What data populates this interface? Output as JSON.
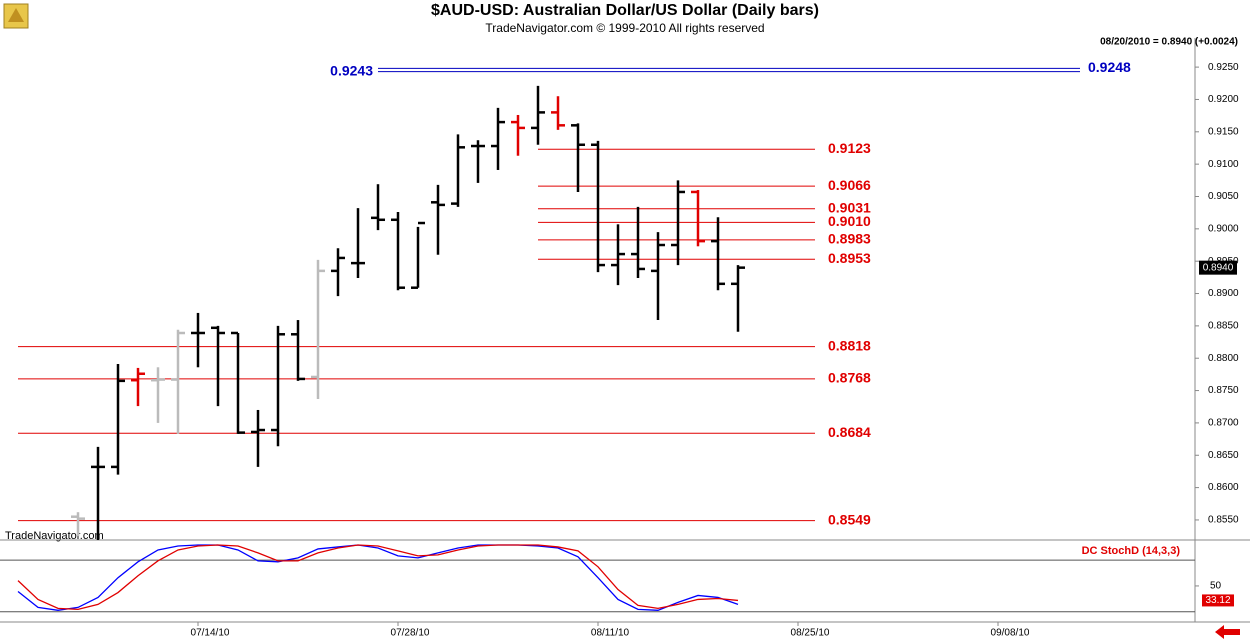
{
  "chart_data": [
    {
      "type": "ohlc",
      "title": "$AUD-USD:  Australian Dollar/US Dollar  (Daily bars)",
      "subtitle": "TradeNavigator.com © 1999-2010 All rights reserved",
      "info": "08/20/2010 = 0.8940 (+0.0024)",
      "watermark": "TradeNavigator.com",
      "x": [
        0,
        1,
        2,
        3,
        4,
        5,
        6,
        7,
        8,
        9,
        10,
        11,
        12,
        13,
        14,
        15,
        16,
        17,
        18,
        19,
        20,
        21,
        22,
        23,
        24,
        25,
        26,
        27,
        28,
        29,
        30,
        31,
        32,
        33
      ],
      "open": [
        0.8555,
        0.8632,
        0.8632,
        0.8766,
        0.8766,
        0.8767,
        0.8839,
        0.8847,
        0.8839,
        0.8686,
        0.8689,
        0.8837,
        0.8771,
        0.8935,
        0.8947,
        0.9017,
        0.9014,
        0.8909,
        0.9041,
        0.9039,
        0.9128,
        0.9128,
        0.9165,
        0.9156,
        0.918,
        0.916,
        0.913,
        0.8944,
        0.8961,
        0.8935,
        0.8975,
        0.9057,
        0.8981,
        0.8915
      ],
      "high": [
        0.8562,
        0.8663,
        0.8791,
        0.8785,
        0.8786,
        0.8844,
        0.887,
        0.885,
        0.8839,
        0.872,
        0.885,
        0.8859,
        0.8952,
        0.897,
        0.9032,
        0.9069,
        0.9026,
        0.9003,
        0.9068,
        0.9146,
        0.9137,
        0.9187,
        0.9176,
        0.9221,
        0.9205,
        0.9163,
        0.9136,
        0.9007,
        0.9034,
        0.8995,
        0.9075,
        0.906,
        0.9018,
        0.8944
      ],
      "low": [
        0.8525,
        0.8519,
        0.862,
        0.8726,
        0.87,
        0.8683,
        0.8786,
        0.8726,
        0.8683,
        0.8632,
        0.8664,
        0.8765,
        0.8737,
        0.8896,
        0.8924,
        0.8998,
        0.8905,
        0.8909,
        0.896,
        0.9034,
        0.9071,
        0.9091,
        0.9113,
        0.913,
        0.9153,
        0.9057,
        0.8933,
        0.8913,
        0.8924,
        0.8859,
        0.8944,
        0.8973,
        0.8905,
        0.8841
      ],
      "close": [
        0.8552,
        0.8632,
        0.8765,
        0.8776,
        0.8767,
        0.8839,
        0.8839,
        0.8839,
        0.8685,
        0.8689,
        0.8837,
        0.8768,
        0.8935,
        0.8955,
        0.8947,
        0.9014,
        0.8909,
        0.9009,
        0.9037,
        0.9126,
        0.9128,
        0.9165,
        0.9156,
        0.918,
        0.916,
        0.913,
        0.8944,
        0.8961,
        0.8938,
        0.8975,
        0.9057,
        0.8981,
        0.8915,
        0.894
      ],
      "bar_colors": [
        "#bbbbbb",
        "#000000",
        "#000000",
        "#e00000",
        "#bbbbbb",
        "#bbbbbb",
        "#000000",
        "#000000",
        "#000000",
        "#000000",
        "#000000",
        "#000000",
        "#bbbbbb",
        "#000000",
        "#000000",
        "#000000",
        "#000000",
        "#000000",
        "#000000",
        "#000000",
        "#000000",
        "#000000",
        "#e00000",
        "#000000",
        "#e00000",
        "#000000",
        "#000000",
        "#000000",
        "#000000",
        "#000000",
        "#000000",
        "#e00000",
        "#000000",
        "#000000"
      ],
      "xlim": [
        -3.9,
        55.85
      ],
      "xticks": [
        {
          "value": 6,
          "label": "07/14/10"
        },
        {
          "value": 16,
          "label": "07/28/10"
        },
        {
          "value": 26,
          "label": "08/11/10"
        },
        {
          "value": 36,
          "label": "08/25/10"
        },
        {
          "value": 46,
          "label": "09/08/10"
        }
      ],
      "ylim": [
        0.8519,
        0.9295
      ],
      "yticks": [
        {
          "value": 0.855,
          "label": "0.8550"
        },
        {
          "value": 0.86,
          "label": "0.8600"
        },
        {
          "value": 0.865,
          "label": "0.8650"
        },
        {
          "value": 0.87,
          "label": "0.8700"
        },
        {
          "value": 0.875,
          "label": "0.8750"
        },
        {
          "value": 0.88,
          "label": "0.8800"
        },
        {
          "value": 0.885,
          "label": "0.8850"
        },
        {
          "value": 0.89,
          "label": "0.8900"
        },
        {
          "value": 0.895,
          "label": "0.8950"
        },
        {
          "value": 0.9,
          "label": "0.9000"
        },
        {
          "value": 0.905,
          "label": "0.9050"
        },
        {
          "value": 0.91,
          "label": "0.9100"
        },
        {
          "value": 0.915,
          "label": "0.9150"
        },
        {
          "value": 0.92,
          "label": "0.9200"
        },
        {
          "value": 0.925,
          "label": "0.9250"
        }
      ],
      "level_color": "#e00000",
      "levels_recent": [
        0.9123,
        0.9066,
        0.9031,
        {
          "value": 0.901,
          "label": "0.9010"
        },
        0.8983,
        0.8953
      ],
      "levels": [
        0.8818,
        0.8768,
        0.8684,
        0.8549
      ],
      "channel_color": "#0000c0",
      "channel": [
        0.9243,
        0.9248
      ],
      "last": {
        "value": 0.894,
        "label": "0.8940"
      }
    },
    {
      "type": "line",
      "title": "DC StochD (14,3,3)",
      "x": [
        -3,
        -2,
        -1,
        0,
        1,
        2,
        3,
        4,
        5,
        6,
        7,
        8,
        9,
        10,
        11,
        12,
        13,
        14,
        15,
        16,
        17,
        18,
        19,
        20,
        21,
        22,
        23,
        24,
        25,
        26,
        27,
        28,
        29,
        30,
        31,
        32,
        33
      ],
      "series": [
        {
          "color": "#0000ff",
          "values": [
            43.5,
            25,
            21.6,
            25,
            36.6,
            59.6,
            78.1,
            91.9,
            96.5,
            97.7,
            97.7,
            91.9,
            79.2,
            78.1,
            82.7,
            93.1,
            95.4,
            97.7,
            94.2,
            85,
            82.7,
            88.5,
            94.2,
            97.7,
            97.7,
            97.7,
            96.5,
            94.2,
            83.9,
            59.6,
            34.3,
            22.7,
            21.6,
            30.8,
            38.9,
            36.6,
            28.5
          ]
        },
        {
          "color": "#e00000",
          "values": [
            56.2,
            34.3,
            23.9,
            22.7,
            28.5,
            42.3,
            61.9,
            79.2,
            91.9,
            96.5,
            97.7,
            96.5,
            88.5,
            79.2,
            79.2,
            88.5,
            94.2,
            97.7,
            96.5,
            90.8,
            85,
            86.2,
            91.9,
            96.5,
            97.7,
            97.7,
            97.7,
            95.4,
            90.8,
            72.3,
            45.8,
            27.3,
            23.9,
            28.5,
            34.3,
            35.4,
            33.12
          ]
        }
      ],
      "xlim": [
        -3.9,
        55.85
      ],
      "ylim": [
        8,
        100
      ],
      "yticks": [
        50
      ],
      "levels": [
        80,
        20
      ],
      "last": 33.12
    }
  ]
}
